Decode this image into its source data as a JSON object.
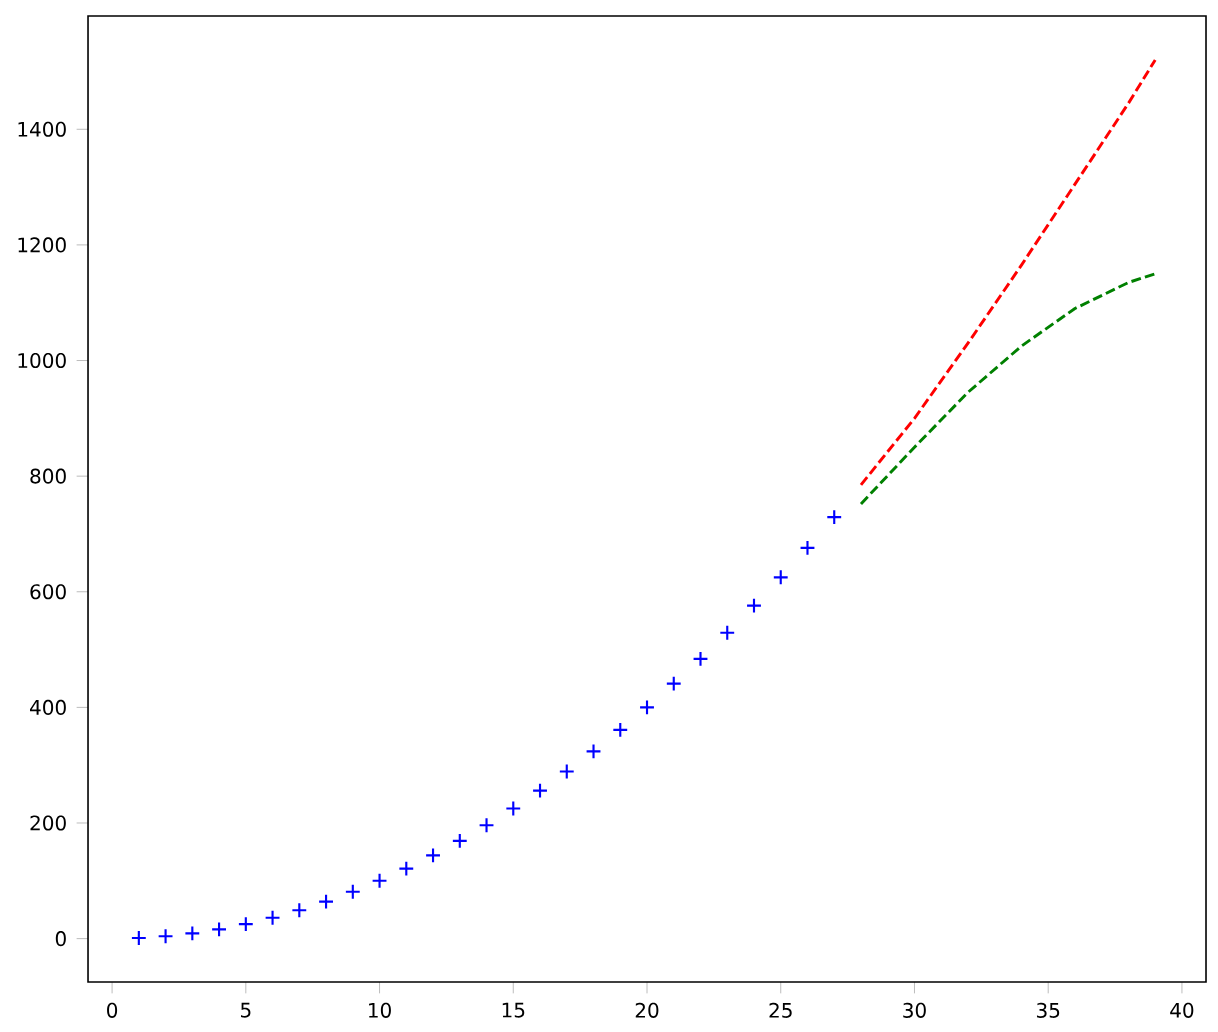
{
  "chart_data": {
    "type": "scatter",
    "xlim": [
      -0.9,
      40.9
    ],
    "ylim": [
      -75,
      1596
    ],
    "xticks": [
      0,
      5,
      10,
      15,
      20,
      25,
      30,
      35,
      40
    ],
    "yticks": [
      0,
      200,
      400,
      600,
      800,
      1000,
      1200,
      1400
    ],
    "grid": false,
    "series": [
      {
        "color": "#0000ff",
        "marker": "cross",
        "x": [
          1,
          2,
          3,
          4,
          5,
          6,
          7,
          8,
          9,
          10,
          11,
          12,
          13,
          14,
          15,
          16,
          17,
          18,
          19,
          20,
          21,
          22,
          23,
          24,
          25,
          26,
          27
        ],
        "values": [
          1,
          4,
          9,
          16,
          25,
          36,
          49,
          64,
          81,
          100,
          121,
          144,
          169,
          196,
          225,
          256,
          289,
          324,
          361,
          400,
          441,
          484,
          529,
          576,
          625,
          676,
          729
        ]
      },
      {
        "type": "line",
        "color": "#ff0000",
        "line_style": "dashed",
        "marker": "none",
        "x": [
          28,
          30,
          32,
          34,
          36,
          38,
          39
        ],
        "values": [
          785,
          900,
          1030,
          1165,
          1305,
          1445,
          1520
        ]
      },
      {
        "type": "line",
        "color": "#008000",
        "line_style": "dashed",
        "marker": "none",
        "x": [
          28,
          30,
          32,
          34,
          36,
          38,
          39
        ],
        "values": [
          752,
          850,
          945,
          1025,
          1090,
          1135,
          1150
        ]
      }
    ]
  }
}
